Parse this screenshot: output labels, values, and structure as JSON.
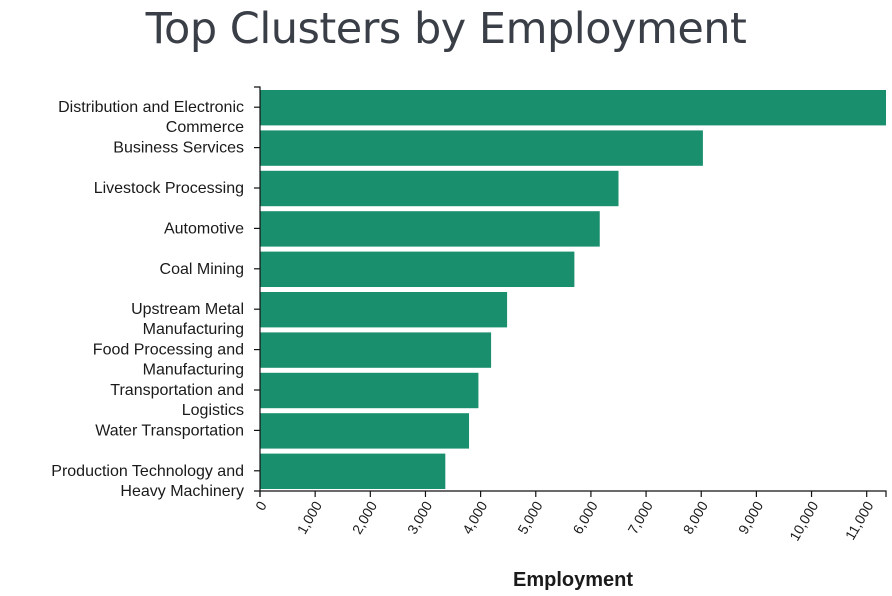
{
  "chart_data": {
    "type": "bar",
    "orientation": "horizontal",
    "title": "Top Clusters by Employment",
    "xlabel": "Employment",
    "ylabel": "",
    "xlim": [
      0,
      11350
    ],
    "x_ticks": [
      0,
      1000,
      2000,
      3000,
      4000,
      5000,
      6000,
      7000,
      8000,
      9000,
      10000,
      11000
    ],
    "x_tick_labels": [
      "0",
      "1,000",
      "2,000",
      "3,000",
      "4,000",
      "5,000",
      "6,000",
      "7,000",
      "8,000",
      "9,000",
      "10,000",
      "11,000"
    ],
    "categories": [
      [
        "Distribution and Electronic",
        "Commerce"
      ],
      [
        "Business Services"
      ],
      [
        "Livestock Processing"
      ],
      [
        "Automotive"
      ],
      [
        "Coal Mining"
      ],
      [
        "Upstream Metal",
        "Manufacturing"
      ],
      [
        "Food Processing and",
        "Manufacturing"
      ],
      [
        "Transportation and",
        "Logistics"
      ],
      [
        "Water Transportation"
      ],
      [
        "Production Technology and",
        "Heavy Machinery"
      ]
    ],
    "values": [
      11350,
      8030,
      6500,
      6160,
      5700,
      4480,
      4190,
      3960,
      3790,
      3360
    ],
    "bar_color": "#1a8f6d",
    "grid": false
  }
}
